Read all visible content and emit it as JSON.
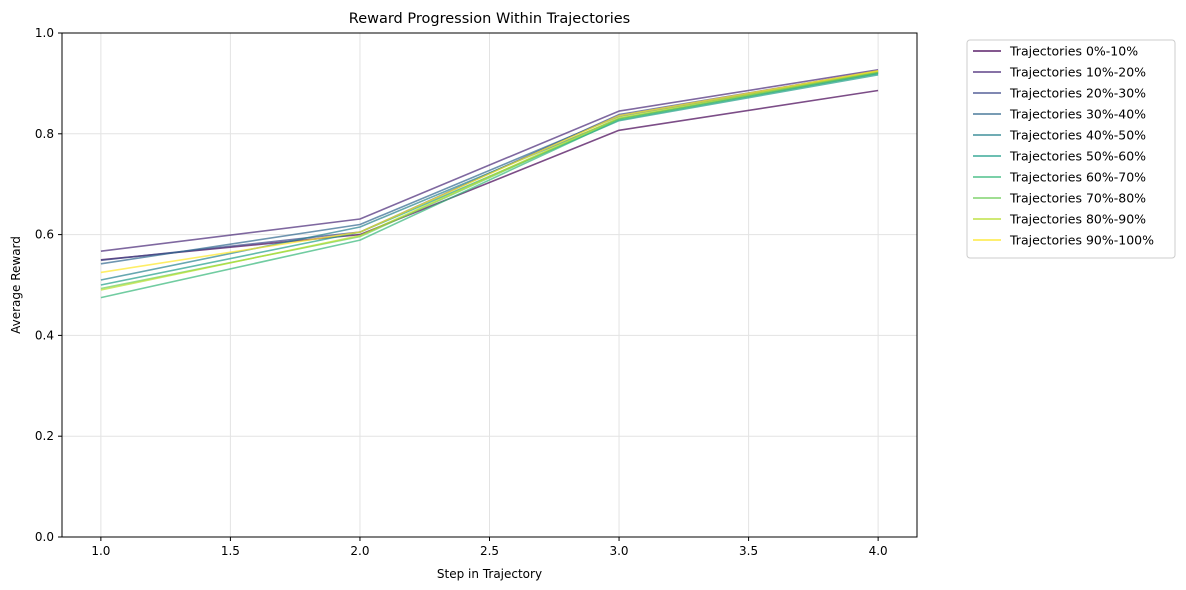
{
  "chart_data": {
    "type": "line",
    "title": "Reward Progression Within Trajectories",
    "xlabel": "Step in Trajectory",
    "ylabel": "Average Reward",
    "xlim": [
      0.85,
      4.15
    ],
    "ylim": [
      0,
      1
    ],
    "xticks": [
      1.0,
      1.5,
      2.0,
      2.5,
      3.0,
      3.5,
      4.0
    ],
    "xtick_labels": [
      "1.0",
      "1.5",
      "2.0",
      "2.5",
      "3.0",
      "3.5",
      "4.0"
    ],
    "yticks": [
      0.0,
      0.2,
      0.4,
      0.6,
      0.8,
      1.0
    ],
    "ytick_labels": [
      "0.0",
      "0.2",
      "0.4",
      "0.6",
      "0.8",
      "1.0"
    ],
    "grid": true,
    "legend_position": "outside-right",
    "x": [
      1,
      2,
      3,
      4
    ],
    "series": [
      {
        "name": "Trajectories 0%-10%",
        "color": "#440154",
        "values": [
          0.55,
          0.6,
          0.807,
          0.886
        ]
      },
      {
        "name": "Trajectories 10%-20%",
        "color": "#482878",
        "values": [
          0.567,
          0.631,
          0.845,
          0.927
        ]
      },
      {
        "name": "Trajectories 20%-30%",
        "color": "#3e4989",
        "values": [
          0.549,
          0.605,
          0.838,
          0.924
        ]
      },
      {
        "name": "Trajectories 30%-40%",
        "color": "#31688e",
        "values": [
          0.542,
          0.62,
          0.835,
          0.922
        ]
      },
      {
        "name": "Trajectories 40%-50%",
        "color": "#26828e",
        "values": [
          0.51,
          0.615,
          0.83,
          0.92
        ]
      },
      {
        "name": "Trajectories 50%-60%",
        "color": "#1f9e89",
        "values": [
          0.5,
          0.605,
          0.826,
          0.917
        ]
      },
      {
        "name": "Trajectories 60%-70%",
        "color": "#35b779",
        "values": [
          0.475,
          0.589,
          0.828,
          0.92
        ]
      },
      {
        "name": "Trajectories 70%-80%",
        "color": "#6ece58",
        "values": [
          0.493,
          0.596,
          0.83,
          0.922
        ]
      },
      {
        "name": "Trajectories 80%-90%",
        "color": "#b5de2b",
        "values": [
          0.49,
          0.598,
          0.832,
          0.924
        ]
      },
      {
        "name": "Trajectories 90%-100%",
        "color": "#fde725",
        "values": [
          0.525,
          0.605,
          0.836,
          0.925
        ]
      }
    ]
  }
}
